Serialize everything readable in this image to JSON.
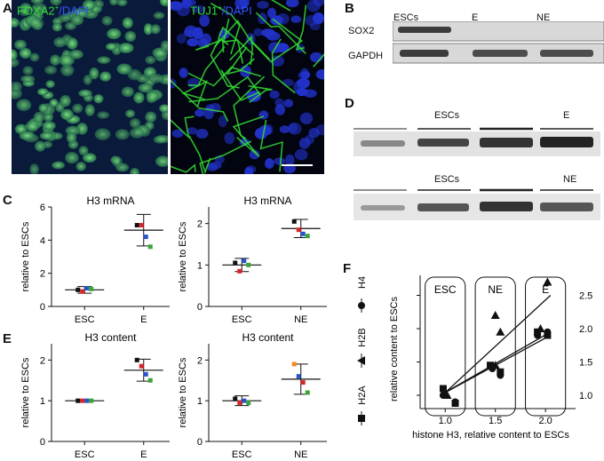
{
  "panels": {
    "A": "A",
    "B": "B",
    "C": "C",
    "D": "D",
    "E": "E",
    "F": "F"
  },
  "micrographs": {
    "left": {
      "marker": "FOXA2",
      "sup": "+",
      "sep": "/",
      "stain": "DAPI"
    },
    "right": {
      "marker": "TUJ1",
      "sup": "+",
      "sep": "/",
      "stain": "DAPI"
    }
  },
  "blot_B": {
    "columns": [
      "ESCs",
      "E",
      "NE"
    ],
    "rows": [
      "SOX2",
      "GAPDH"
    ]
  },
  "blot_D": {
    "top": {
      "labels": [
        "ESCs",
        "E"
      ]
    },
    "bottom": {
      "labels": [
        "ESCs",
        "NE"
      ]
    }
  },
  "colors": {
    "black": "#111111",
    "red": "#d9262b",
    "blue": "#2a55c9",
    "green": "#3aa63a",
    "orange": "#f28a22"
  },
  "plots": [
    {
      "id": "C1",
      "title": "H3 mRNA",
      "ylabel": "relative to ESCs",
      "yticks": [
        "0",
        "2",
        "4",
        "6"
      ],
      "ymax": 6,
      "categories": [
        "ESC",
        "E"
      ],
      "points": [
        [
          1.0,
          0.9,
          1.1,
          1.05
        ],
        [
          4.9,
          4.9,
          4.2,
          3.6
        ]
      ],
      "mean": [
        1.0,
        4.6
      ],
      "sd": [
        0.2,
        0.95
      ]
    },
    {
      "id": "C2",
      "title": "H3 mRNA",
      "ylabel": "relative to ESCs",
      "yticks": [
        "0",
        "1",
        "2"
      ],
      "ymax": 2.4,
      "categories": [
        "ESC",
        "NE"
      ],
      "points": [
        [
          1.05,
          0.85,
          1.1,
          1.0
        ],
        [
          2.05,
          1.85,
          1.75,
          1.7
        ]
      ],
      "mean": [
        1.0,
        1.88
      ],
      "sd": [
        0.16,
        0.22
      ]
    },
    {
      "id": "E1",
      "title": "H3 content",
      "ylabel": "relative to ESCs",
      "yticks": [
        "0",
        "1",
        "2"
      ],
      "ymax": 2.4,
      "categories": [
        "ESC",
        "E"
      ],
      "points": [
        [
          1.0,
          1.0,
          1.0,
          1.0
        ],
        [
          2.0,
          1.85,
          1.65,
          1.5
        ]
      ],
      "mean": [
        1.0,
        1.75
      ],
      "sd": [
        0.01,
        0.27
      ]
    },
    {
      "id": "E2",
      "title": "H3 content",
      "ylabel": "relative to ESCs",
      "yticks": [
        "0",
        "1",
        "2"
      ],
      "ymax": 2.4,
      "categories": [
        "ESC",
        "NE"
      ],
      "points": [
        [
          1.05,
          0.95,
          1.0,
          0.95
        ],
        [
          1.9,
          1.6,
          1.45,
          1.2
        ]
      ],
      "mean": [
        1.0,
        1.53
      ],
      "sd": [
        0.12,
        0.37
      ]
    }
  ],
  "plotF": {
    "xlabel": "histone H3, relative content to ESCs",
    "ylabel": "relative content to ESCs",
    "xticks": [
      "1.0",
      "1.5",
      "2.0"
    ],
    "yticks": [
      "1.0",
      "1.5",
      "2.0",
      "2.5"
    ],
    "groups": [
      "ESC",
      "NE",
      "E"
    ],
    "legend": [
      {
        "name": "H4",
        "marker": "circle"
      },
      {
        "name": "H2B",
        "marker": "triangle"
      },
      {
        "name": "H2A",
        "marker": "square"
      }
    ],
    "xlim": [
      0.75,
      2.3
    ],
    "ylim": [
      0.8,
      2.8
    ],
    "circles": [
      [
        0.98,
        1.0
      ],
      [
        1.1,
        0.9
      ],
      [
        1.47,
        1.4
      ],
      [
        1.55,
        1.3
      ],
      [
        1.92,
        1.9
      ],
      [
        2.02,
        1.95
      ]
    ],
    "triangles": [
      [
        1.02,
        1.0
      ],
      [
        1.5,
        2.2
      ],
      [
        1.55,
        1.95
      ],
      [
        2.02,
        2.7
      ],
      [
        1.95,
        2.0
      ],
      [
        1.5,
        1.45
      ]
    ],
    "squares": [
      [
        0.98,
        1.1
      ],
      [
        1.1,
        0.88
      ],
      [
        1.45,
        1.45
      ],
      [
        1.55,
        1.35
      ],
      [
        1.92,
        1.95
      ],
      [
        2.02,
        1.9
      ]
    ],
    "lines": [
      [
        [
          0.95,
          0.97
        ],
        [
          2.05,
          2.5
        ]
      ],
      [
        [
          0.95,
          1.0
        ],
        [
          2.05,
          1.95
        ]
      ],
      [
        [
          0.95,
          1.0
        ],
        [
          2.05,
          1.9
        ]
      ]
    ]
  }
}
